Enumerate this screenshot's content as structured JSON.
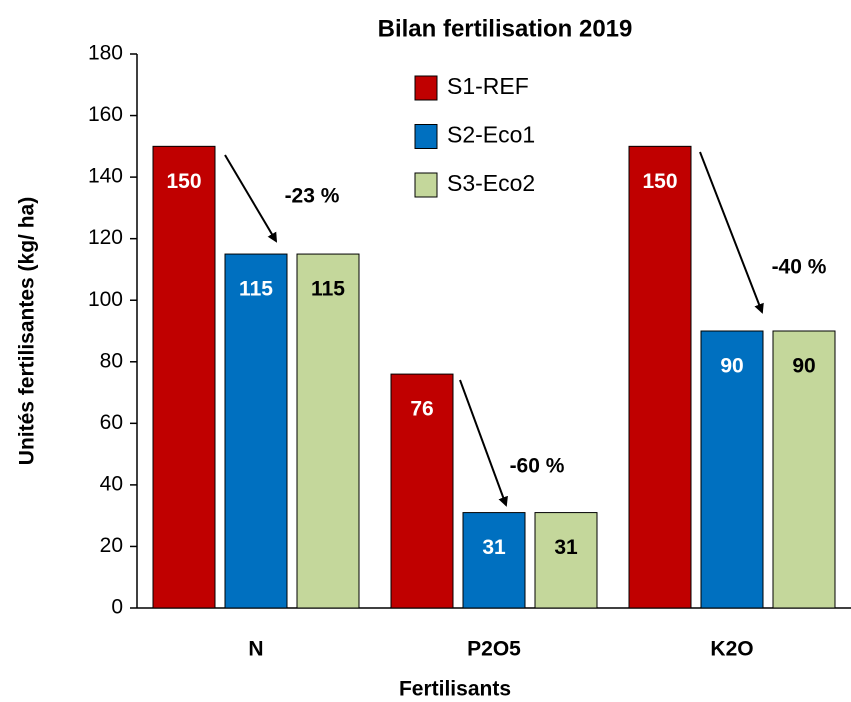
{
  "chart_data": {
    "type": "bar",
    "title": "Bilan fertilisation 2019",
    "x_label": "Fertilisants",
    "y_label": "Unités fertilisantes (kg/ ha)",
    "categories": [
      "N",
      "P2O5",
      "K2O"
    ],
    "series": [
      {
        "name": "S1-REF",
        "color": "#c00000",
        "values": [
          150,
          76,
          150
        ]
      },
      {
        "name": "S2-Eco1",
        "color": "#0070c0",
        "values": [
          115,
          31,
          90
        ]
      },
      {
        "name": "S3-Eco2",
        "color": "#c4d79b",
        "values": [
          115,
          31,
          90
        ]
      }
    ],
    "ylim": [
      0,
      180
    ],
    "yticks": [
      0,
      20,
      40,
      60,
      80,
      100,
      120,
      140,
      160,
      180
    ],
    "grid": false,
    "annotations": [
      "-23 %",
      "-60 %",
      "-40 %"
    ]
  }
}
